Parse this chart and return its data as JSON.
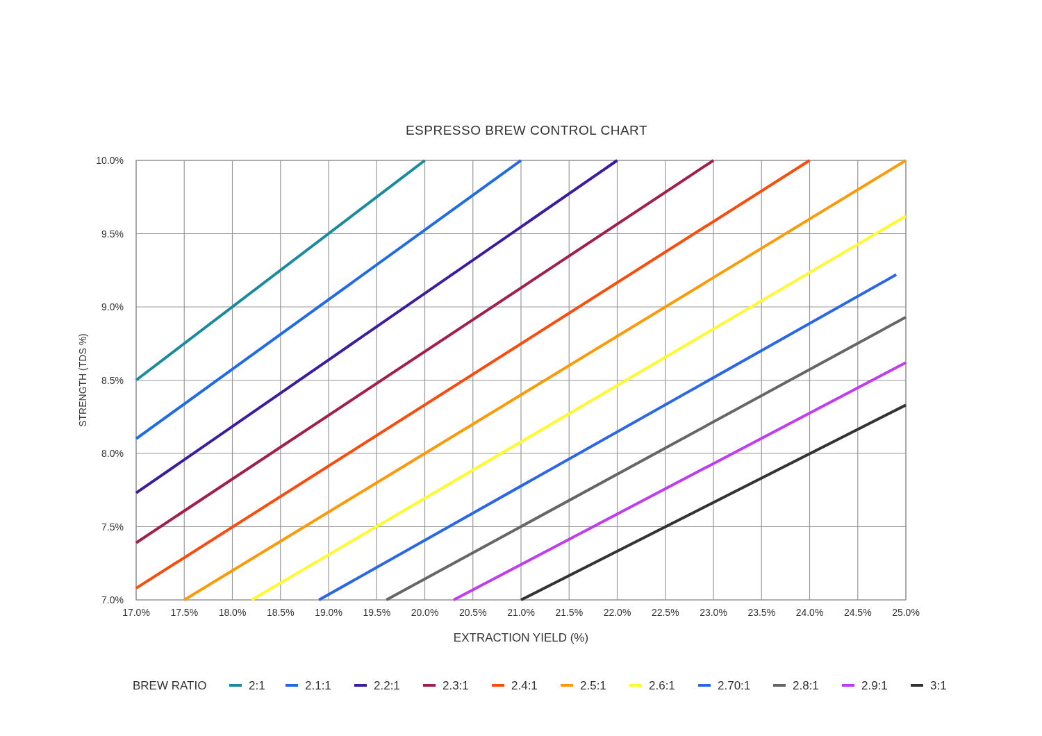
{
  "chart_data": {
    "type": "line",
    "title": "ESPRESSO BREW CONTROL CHART",
    "xlabel": "EXTRACTION YIELD (%)",
    "ylabel": "STRENGTH (TDS %)",
    "legend_title": "BREW RATIO",
    "legend": "bottom",
    "grid": true,
    "line_style": "solid",
    "marker": "none",
    "xlim": [
      17,
      25
    ],
    "ylim": [
      7,
      10
    ],
    "xticks": [
      {
        "value": 17,
        "label": "17.0%"
      },
      {
        "value": 17.5,
        "label": "17.5%"
      },
      {
        "value": 18,
        "label": "18.0%"
      },
      {
        "value": 18.5,
        "label": "18.5%"
      },
      {
        "value": 19,
        "label": "19.0%"
      },
      {
        "value": 19.5,
        "label": "19.5%"
      },
      {
        "value": 20,
        "label": "20.0%"
      },
      {
        "value": 20.5,
        "label": "20.5%"
      },
      {
        "value": 21,
        "label": "21.0%"
      },
      {
        "value": 21.5,
        "label": "21.5%"
      },
      {
        "value": 22,
        "label": "22.0%"
      },
      {
        "value": 22.5,
        "label": "22.5%"
      },
      {
        "value": 23,
        "label": "23.0%"
      },
      {
        "value": 23.5,
        "label": "23.5%"
      },
      {
        "value": 24,
        "label": "24.0%"
      },
      {
        "value": 24.5,
        "label": "24.5%"
      },
      {
        "value": 25,
        "label": "25.0%"
      }
    ],
    "yticks": [
      {
        "value": 7,
        "label": "7.0%"
      },
      {
        "value": 7.5,
        "label": "7.5%"
      },
      {
        "value": 8,
        "label": "8.0%"
      },
      {
        "value": 8.5,
        "label": "8.5%"
      },
      {
        "value": 9,
        "label": "9.0%"
      },
      {
        "value": 9.5,
        "label": "9.5%"
      },
      {
        "value": 10,
        "label": "10.0%"
      }
    ],
    "series": [
      {
        "name": "2:1",
        "color": "#1b8a9e",
        "x": [
          17,
          20
        ],
        "values": [
          8.5,
          10
        ]
      },
      {
        "name": "2.1:1",
        "color": "#1f6ae6",
        "x": [
          17,
          21
        ],
        "values": [
          8.1,
          10
        ]
      },
      {
        "name": "2.2:1",
        "color": "#3b1c9e",
        "x": [
          17,
          22
        ],
        "values": [
          7.73,
          10
        ]
      },
      {
        "name": "2.3:1",
        "color": "#a11f4c",
        "x": [
          17,
          23
        ],
        "values": [
          7.39,
          10
        ]
      },
      {
        "name": "2.4:1",
        "color": "#fc4c0c",
        "x": [
          17,
          24
        ],
        "values": [
          7.08,
          10
        ]
      },
      {
        "name": "2.5:1",
        "color": "#fd9a08",
        "x": [
          17.5,
          25
        ],
        "values": [
          7,
          10
        ]
      },
      {
        "name": "2.6:1",
        "color": "#fdfa30",
        "x": [
          18.2,
          25
        ],
        "values": [
          7,
          9.62
        ]
      },
      {
        "name": "2.70:1",
        "color": "#2a66e8",
        "x": [
          18.9,
          24.9
        ],
        "values": [
          7,
          9.22
        ]
      },
      {
        "name": "2.8:1",
        "color": "#666666",
        "x": [
          19.6,
          25
        ],
        "values": [
          7,
          8.93
        ]
      },
      {
        "name": "2.9:1",
        "color": "#c03cf0",
        "x": [
          20.3,
          25
        ],
        "values": [
          7,
          8.62
        ]
      },
      {
        "name": "3:1",
        "color": "#333333",
        "x": [
          21,
          25
        ],
        "values": [
          7,
          8.33
        ]
      }
    ]
  }
}
